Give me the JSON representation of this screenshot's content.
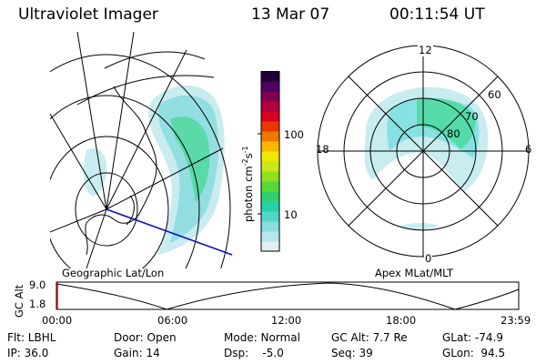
{
  "header": {
    "title": "Ultraviolet Imager",
    "date": "13 Mar 07",
    "time": "00:11:54 UT"
  },
  "left_panel": {
    "caption": "Geographic Lat/Lon"
  },
  "right_panel": {
    "caption": "Apex MLat/MLT",
    "mlt_labels": [
      "12",
      "18",
      "6",
      "0"
    ],
    "lat_labels": [
      "60",
      "70",
      "80"
    ]
  },
  "colorbar": {
    "unit_label": "photon cm",
    "unit_sup1": "-2",
    "unit_mid": "s",
    "unit_sup2": "-1",
    "ticks": [
      "100",
      "10"
    ],
    "colors": [
      "#e0f0f4",
      "#b8e6ea",
      "#8adcde",
      "#52d6c8",
      "#28d0a8",
      "#30d070",
      "#58d838",
      "#90e020",
      "#c8e818",
      "#f0e800",
      "#f8b800",
      "#f07800",
      "#e83800",
      "#d80020",
      "#b00040",
      "#800050",
      "#500060",
      "#200038"
    ]
  },
  "timeline": {
    "y_axis_label": "GC Alt",
    "y_ticks": [
      "9.0",
      "1.8"
    ],
    "x_ticks": [
      "00:00",
      "06:00",
      "12:00",
      "18:00",
      "23:59"
    ]
  },
  "info": {
    "flt": "Flt: LBHL",
    "ip": "IP: 36.0",
    "door": "Door: Open",
    "gain": "Gain: 14",
    "mode": "Mode: Normal",
    "dsp": "Dsp:    -5.0",
    "gc_alt": "GC Alt: 7.7 Re",
    "seq": "Seq: 39",
    "glat": "GLat: -74.9",
    "glon": "GLon:  94.5"
  },
  "colors": {
    "aurora_light": "#c8ecf0",
    "aurora_cyan": "#7fe0e0",
    "aurora_green": "#40d890",
    "marker_red": "#e00000",
    "coast_blue": "#1010c0"
  }
}
